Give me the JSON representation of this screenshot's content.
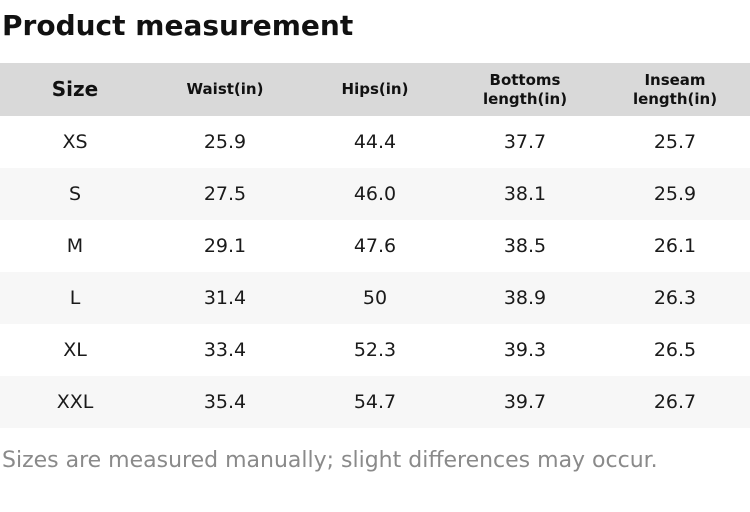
{
  "title": "Product measurement",
  "table": {
    "headers": [
      "Size",
      "Waist(in)",
      "Hips(in)",
      "Bottoms length(in)",
      "Inseam length(in)"
    ],
    "rows": [
      [
        "XS",
        "25.9",
        "44.4",
        "37.7",
        "25.7"
      ],
      [
        "S",
        "27.5",
        "46.0",
        "38.1",
        "25.9"
      ],
      [
        "M",
        "29.1",
        "47.6",
        "38.5",
        "26.1"
      ],
      [
        "L",
        "31.4",
        "50",
        "38.9",
        "26.3"
      ],
      [
        "XL",
        "33.4",
        "52.3",
        "39.3",
        "26.5"
      ],
      [
        "XXL",
        "35.4",
        "54.7",
        "39.7",
        "26.7"
      ]
    ]
  },
  "footer_note": "Sizes are measured manually; slight differences may occur.",
  "colors": {
    "header_bg": "#d9d9d9",
    "stripe_bg": "#f7f7f7",
    "text": "#1a1a1a",
    "footer_text": "#8a8a8a"
  }
}
